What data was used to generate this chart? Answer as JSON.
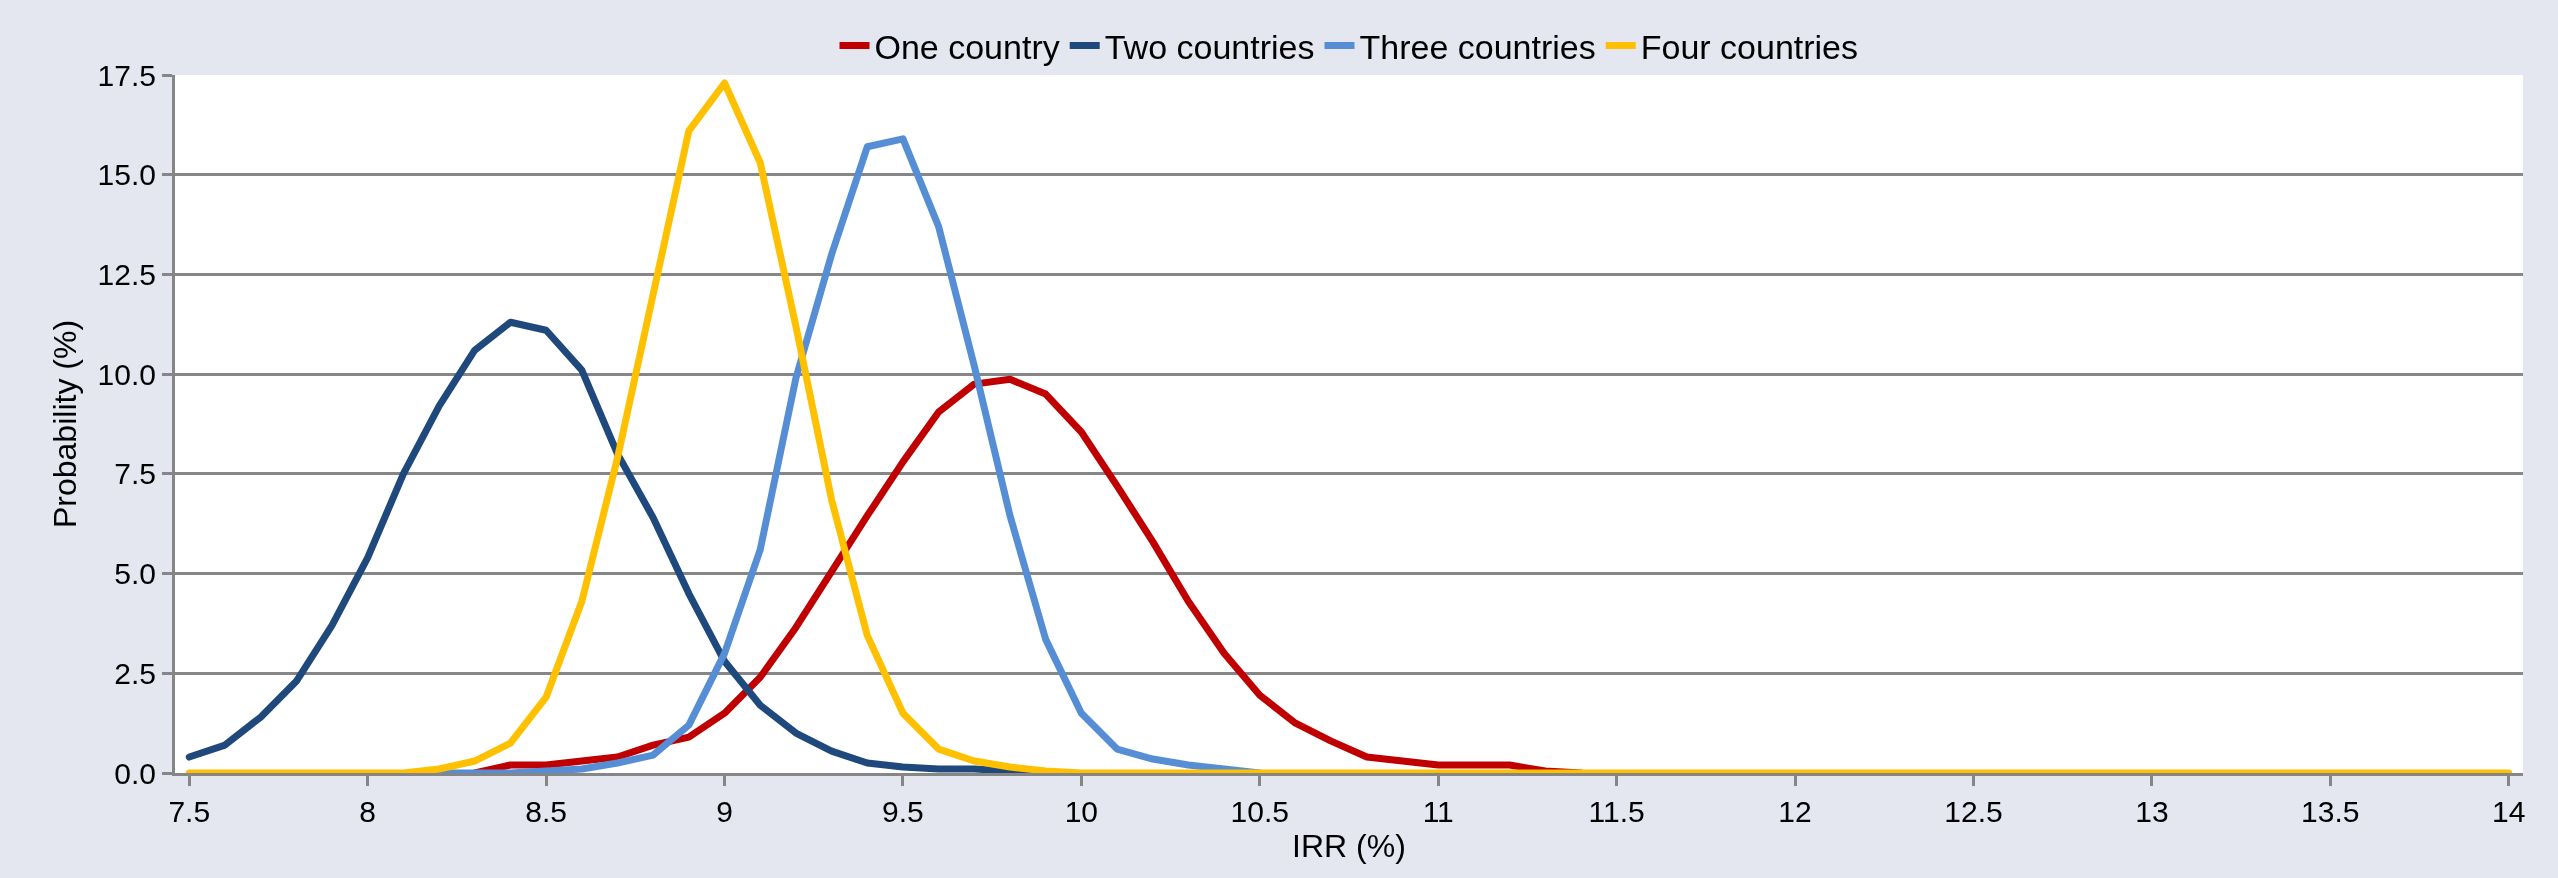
{
  "chart_data": {
    "type": "line",
    "xlabel": "IRR (%)",
    "ylabel": "Probability (%)",
    "x": [
      7.5,
      7.6,
      7.7,
      7.8,
      7.9,
      8.0,
      8.1,
      8.2,
      8.3,
      8.4,
      8.5,
      8.6,
      8.7,
      8.8,
      8.9,
      9.0,
      9.1,
      9.2,
      9.3,
      9.4,
      9.5,
      9.6,
      9.7,
      9.8,
      9.9,
      10.0,
      10.1,
      10.2,
      10.3,
      10.4,
      10.5,
      10.6,
      10.7,
      10.8,
      10.9,
      11.0,
      11.1,
      11.2,
      11.3,
      11.4,
      11.5,
      11.6,
      11.7,
      11.8,
      11.9,
      12.0,
      12.1,
      12.2,
      12.3,
      12.4,
      12.5,
      12.6,
      12.7,
      12.8,
      12.9,
      13.0,
      13.1,
      13.2,
      13.3,
      13.4,
      13.5,
      13.6,
      13.7,
      13.8,
      13.9,
      14.0
    ],
    "xlim": [
      7.46,
      14.04
    ],
    "xticks": [
      7.5,
      8,
      8.5,
      9,
      9.5,
      10,
      10.5,
      11,
      11.5,
      12,
      12.5,
      13,
      13.5,
      14
    ],
    "ylim": [
      0,
      17.5
    ],
    "yticks": [
      {
        "value": 0,
        "label": "0.0"
      },
      2.5,
      {
        "value": 5,
        "label": "5.0"
      },
      7.5,
      {
        "value": 10,
        "label": "10.0"
      },
      12.5,
      {
        "value": 15,
        "label": "15.0"
      },
      17.5
    ],
    "grid": "y",
    "legend": "top",
    "marker": "none",
    "line_style": "solid",
    "series": [
      {
        "name": "One country",
        "color": "#c00000",
        "values": [
          null,
          null,
          null,
          null,
          null,
          null,
          null,
          null,
          0,
          0.2,
          0.2,
          0.3,
          0.4,
          0.7,
          0.9,
          1.5,
          2.4,
          3.65,
          5.05,
          6.45,
          7.8,
          9.05,
          9.75,
          9.87,
          9.5,
          8.55,
          7.2,
          5.8,
          4.3,
          3.0,
          1.95,
          1.25,
          0.8,
          0.4,
          0.3,
          0.2,
          0.2,
          0.2,
          0.05,
          0,
          null,
          null,
          null,
          null,
          null,
          null,
          null,
          null,
          null,
          null,
          null,
          null,
          null,
          null,
          null,
          null,
          null,
          null,
          null,
          null,
          null,
          null,
          null,
          null,
          null,
          null
        ]
      },
      {
        "name": "Two countries",
        "color": "#1f497d",
        "values": [
          0.4,
          0.7,
          1.4,
          2.3,
          3.7,
          5.4,
          7.5,
          9.2,
          10.6,
          11.3,
          11.1,
          10.1,
          8.0,
          6.4,
          4.5,
          2.8,
          1.7,
          1.0,
          0.55,
          0.25,
          0.15,
          0.1,
          0.1,
          0.05,
          0,
          null,
          null,
          null,
          null,
          null,
          null,
          null,
          null,
          null,
          null,
          null,
          null,
          null,
          null,
          null,
          null,
          null,
          null,
          null,
          null,
          null,
          null,
          null,
          null,
          null,
          null,
          null,
          null,
          null,
          null,
          null,
          null,
          null,
          null,
          null,
          null,
          null,
          null,
          null,
          null,
          null
        ]
      },
      {
        "name": "Three countries",
        "color": "#558ed5",
        "values": [
          null,
          null,
          null,
          null,
          null,
          null,
          null,
          0,
          0,
          0,
          0.05,
          0.1,
          0.25,
          0.45,
          1.2,
          3.0,
          5.6,
          9.9,
          13.0,
          15.7,
          15.9,
          13.7,
          10.2,
          6.45,
          3.35,
          1.5,
          0.6,
          0.35,
          0.2,
          0.1,
          0,
          null,
          null,
          null,
          null,
          null,
          null,
          null,
          null,
          null,
          null,
          null,
          null,
          null,
          null,
          null,
          null,
          null,
          null,
          null,
          null,
          null,
          null,
          null,
          null,
          null,
          null,
          null,
          null,
          null,
          null,
          null,
          null,
          null,
          null,
          null
        ]
      },
      {
        "name": "Four countries",
        "color": "#ffc000",
        "values": [
          0,
          0,
          0,
          0,
          0,
          0,
          0,
          0.1,
          0.3,
          0.75,
          1.9,
          4.3,
          7.9,
          12.0,
          16.1,
          17.3,
          15.3,
          11.2,
          6.85,
          3.45,
          1.5,
          0.6,
          0.3,
          0.15,
          0.05,
          0,
          0,
          0,
          0,
          0,
          0,
          0,
          0,
          0,
          0,
          0,
          0,
          0,
          0,
          0,
          0,
          0,
          0,
          0,
          0,
          0,
          0,
          0,
          0,
          0,
          0,
          0,
          0,
          0,
          0,
          0,
          0,
          0,
          0,
          0,
          0,
          0,
          0,
          0,
          0,
          0
        ]
      }
    ]
  }
}
